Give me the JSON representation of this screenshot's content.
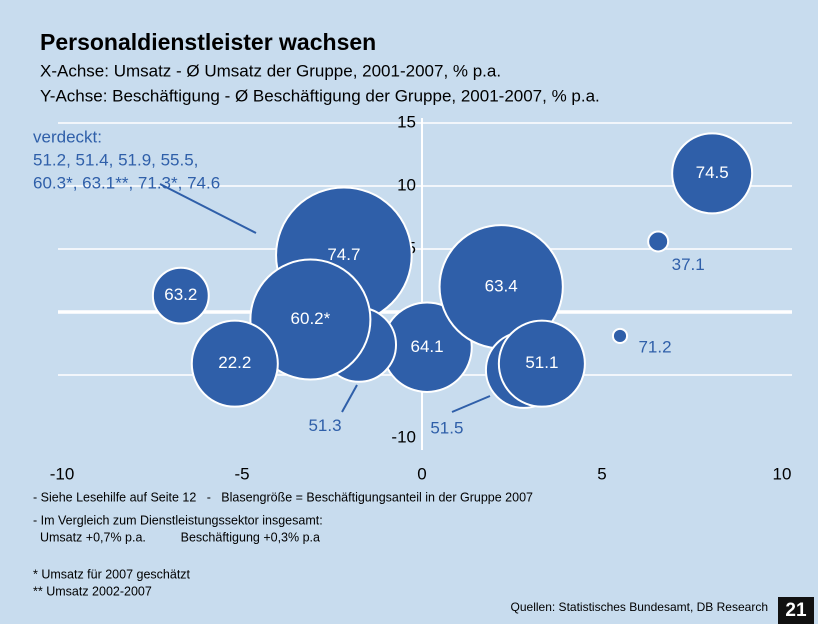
{
  "chart_data": {
    "type": "bubble",
    "title": "Personaldienstleister wachsen",
    "subtitle": [
      "X-Achse: Umsatz - Ø Umsatz der Gruppe, 2001-2007, % p.a.",
      "Y-Achse: Beschäftigung - Ø Beschäftigung der Gruppe, 2001-2007, % p.a."
    ],
    "annotation": [
      "verdeckt:",
      "51.2, 51.4, 51.9, 55.5,",
      "60.3*, 63.1**, 71.3*, 74.6"
    ],
    "labels": [
      "74.5",
      "37.1",
      "71.2",
      "64.1",
      "63.4",
      "51.5",
      "51.1",
      "74.7",
      "51.3",
      "60.2*",
      "63.2",
      "22.2"
    ],
    "x": [
      8.06,
      6.56,
      5.5,
      0.14,
      2.2,
      2.83,
      3.33,
      -2.17,
      -1.75,
      -3.1,
      -6.7,
      -5.2
    ],
    "values": [
      11.0,
      5.6,
      -1.9,
      -2.8,
      2.0,
      -4.6,
      -4.1,
      4.5,
      -2.6,
      -0.6,
      1.3,
      -4.1
    ],
    "sizes": [
      16,
      1,
      0.5,
      20,
      38,
      14.4,
      18.5,
      46,
      13.7,
      36,
      7.8,
      18.5
    ],
    "color": "#2f5fa9",
    "xlim": [
      -10,
      10
    ],
    "ylim": [
      -10,
      15
    ],
    "xticks": [
      -10,
      -5,
      0,
      5,
      10
    ],
    "yticks": [
      -10,
      -5,
      0,
      5,
      10,
      15
    ],
    "grid": true,
    "footnotes": [
      "- Siehe Lesehilfe auf Seite 12   -   Blasengröße = Beschäftigungsanteil in der Gruppe 2007",
      "- Im Vergleich zum Dienstleistungssektor insgesamt:",
      "  Umsatz +0,7% p.a.          Beschäftigung +0,3% p.a",
      "* Umsatz für 2007 geschätzt",
      "** Umsatz 2002-2007"
    ],
    "source": "Quellen: Statistisches Bundesamt, DB Research",
    "page_number": "21"
  }
}
